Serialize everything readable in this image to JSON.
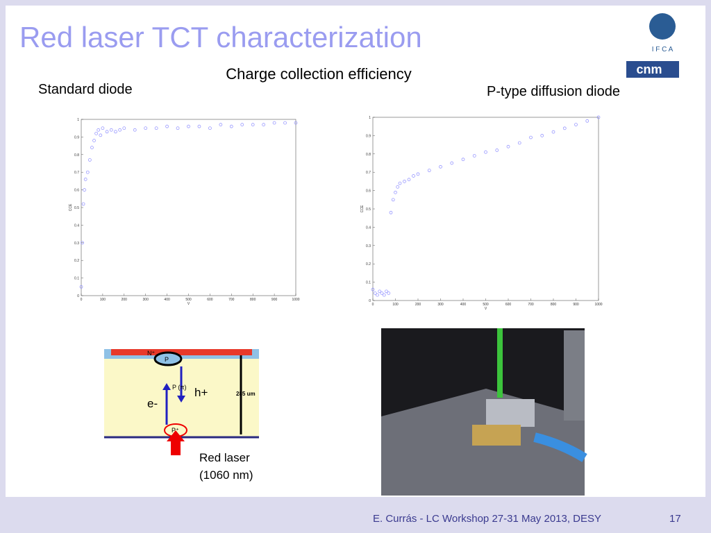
{
  "slide": {
    "title": "Red laser TCT characterization",
    "subtitle": "Charge collection efficiency",
    "footer": "E. Currás -  LC Workshop 27-31 May 2013, DESY",
    "page": "17",
    "logo_ifca": "I F C A",
    "logo_cnm": "cnm"
  },
  "diagram": {
    "n_plus": "N⁺",
    "p_top": "P",
    "p_pi": "P (π)",
    "holes": "h+",
    "electrons": "e-",
    "thickness": "285 um",
    "p_plus": "P⁺",
    "laser": "Red laser",
    "wavelength": "(1060 nm)"
  },
  "chart_data": [
    {
      "type": "scatter",
      "title": "Standard diode",
      "x_label": "V",
      "y_label": "CCE",
      "color": "#8a8aff",
      "x": [
        0,
        5,
        10,
        15,
        20,
        30,
        40,
        50,
        60,
        70,
        80,
        90,
        100,
        120,
        140,
        160,
        180,
        200,
        250,
        300,
        350,
        400,
        450,
        500,
        550,
        600,
        650,
        700,
        750,
        800,
        850,
        900,
        950,
        1000
      ],
      "values": [
        0.05,
        0.3,
        0.52,
        0.6,
        0.66,
        0.7,
        0.77,
        0.84,
        0.88,
        0.92,
        0.94,
        0.91,
        0.95,
        0.93,
        0.94,
        0.93,
        0.94,
        0.95,
        0.94,
        0.95,
        0.95,
        0.96,
        0.95,
        0.96,
        0.96,
        0.95,
        0.97,
        0.96,
        0.97,
        0.97,
        0.97,
        0.98,
        0.98,
        0.98
      ],
      "xlim": [
        0,
        1000
      ],
      "ylim": [
        0,
        1
      ],
      "xticks": [
        0,
        100,
        200,
        300,
        400,
        500,
        600,
        700,
        800,
        900,
        1000
      ],
      "yticks": [
        0,
        0.1,
        0.2,
        0.3,
        0.4,
        0.5,
        0.6,
        0.7,
        0.8,
        0.9,
        1
      ]
    },
    {
      "type": "scatter",
      "title": "P-type diffusion diode",
      "x_label": "V",
      "y_label": "CCE",
      "color": "#8a8aff",
      "x": [
        0,
        10,
        20,
        30,
        40,
        50,
        60,
        70,
        80,
        90,
        100,
        110,
        120,
        140,
        160,
        180,
        200,
        250,
        300,
        350,
        400,
        450,
        500,
        550,
        600,
        650,
        700,
        750,
        800,
        850,
        900,
        950,
        1000
      ],
      "values": [
        0.06,
        0.04,
        0.03,
        0.05,
        0.04,
        0.03,
        0.05,
        0.04,
        0.48,
        0.55,
        0.59,
        0.62,
        0.64,
        0.65,
        0.66,
        0.68,
        0.69,
        0.71,
        0.73,
        0.75,
        0.77,
        0.79,
        0.81,
        0.82,
        0.84,
        0.86,
        0.89,
        0.9,
        0.92,
        0.94,
        0.96,
        0.98,
        1.0
      ],
      "xlim": [
        0,
        1000
      ],
      "ylim": [
        0,
        1
      ],
      "xticks": [
        0,
        100,
        200,
        300,
        400,
        500,
        600,
        700,
        800,
        900,
        1000
      ],
      "yticks": [
        0,
        0.1,
        0.2,
        0.3,
        0.4,
        0.5,
        0.6,
        0.7,
        0.8,
        0.9,
        1
      ]
    }
  ]
}
